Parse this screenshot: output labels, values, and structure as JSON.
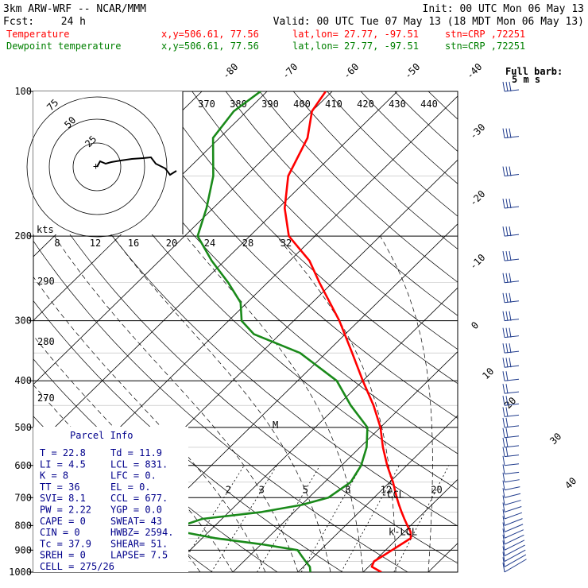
{
  "header": {
    "model": "3km ARW-WRF -- NCAR/MMM",
    "init": "Init: 00 UTC Mon 06 May 13",
    "fcst_label": "Fcst:",
    "fcst_value": "24 h",
    "valid": "Valid: 00 UTC Tue 07 May 13 (18 MDT Mon 06 May 13)"
  },
  "legend": [
    {
      "name": "Temperature",
      "xy": "x,y=506.61, 77.56",
      "latlon": "lat,lon= 27.77, -97.51",
      "stn": "stn=CRP ,72251",
      "color": "#ff0000"
    },
    {
      "name": "Dewpoint temperature",
      "xy": "x,y=506.61, 77.56",
      "latlon": "lat,lon= 27.77, -97.51",
      "stn": "stn=CRP ,72251",
      "color": "#008000"
    }
  ],
  "colors": {
    "temperature": "#ff0000",
    "dewpoint": "#1a8a1a",
    "barbs": "#1f3b8c",
    "info": "#00008b",
    "grid": "#000000"
  },
  "chart_data": {
    "type": "line",
    "title": "",
    "y_axis": {
      "label": "",
      "scale": "log",
      "ticks": [
        100,
        200,
        300,
        400,
        500,
        600,
        700,
        800,
        900,
        1000
      ],
      "range": [
        1000,
        100
      ]
    },
    "isotherm_labels": [
      "-80",
      "-70",
      "-60",
      "-50",
      "-40",
      "-30",
      "-20",
      "-10",
      "0",
      "10",
      "20",
      "30",
      "40"
    ],
    "theta_labels_top": [
      "370",
      "380",
      "390",
      "400",
      "410",
      "420",
      "430",
      "440"
    ],
    "theta_labels_left": [
      "290",
      "280",
      "270"
    ],
    "mixing_ratio_labels": [
      "2",
      "3",
      "5",
      "8",
      "12",
      "20"
    ],
    "hodograph": {
      "units": "kts",
      "ring_labels": [
        "25",
        "50",
        "75"
      ],
      "scale_labels": [
        "8",
        "12",
        "16",
        "20",
        "24",
        "28",
        "32"
      ]
    },
    "barb_legend": [
      "Full barb:",
      "5 m s"
    ],
    "level_labels": [
      {
        "text": "CCL",
        "p": 690,
        "color": "#00008b"
      },
      {
        "text": "LCL",
        "p": 825,
        "color": "#00008b"
      },
      {
        "text": "M",
        "p": 495,
        "color": "#00008b"
      }
    ],
    "series": [
      {
        "name": "Temperature",
        "color": "#ff0000",
        "points": [
          [
            1000,
            22.8
          ],
          [
            975,
            20.5
          ],
          [
            950,
            20.0
          ],
          [
            925,
            20.5
          ],
          [
            900,
            21.0
          ],
          [
            875,
            21.5
          ],
          [
            850,
            22.0
          ],
          [
            825,
            21.0
          ],
          [
            800,
            19.5
          ],
          [
            775,
            18.0
          ],
          [
            750,
            16.5
          ],
          [
            725,
            15.0
          ],
          [
            700,
            13.5
          ],
          [
            650,
            10.5
          ],
          [
            600,
            7.0
          ],
          [
            550,
            3.5
          ],
          [
            500,
            0.0
          ],
          [
            450,
            -4.5
          ],
          [
            400,
            -10.0
          ],
          [
            350,
            -16.0
          ],
          [
            300,
            -23.0
          ],
          [
            250,
            -32.0
          ],
          [
            225,
            -37.0
          ],
          [
            200,
            -44.0
          ],
          [
            175,
            -49.0
          ],
          [
            150,
            -53.5
          ],
          [
            125,
            -56.5
          ],
          [
            110,
            -60.0
          ],
          [
            100,
            -61.0
          ]
        ]
      },
      {
        "name": "Dewpoint temperature",
        "color": "#1a8a1a",
        "points": [
          [
            1000,
            11.9
          ],
          [
            975,
            11.0
          ],
          [
            950,
            9.5
          ],
          [
            925,
            8.0
          ],
          [
            900,
            6.5
          ],
          [
            875,
            0.0
          ],
          [
            850,
            -8.0
          ],
          [
            825,
            -14.0
          ],
          [
            800,
            -15.0
          ],
          [
            775,
            -13.0
          ],
          [
            750,
            -5.0
          ],
          [
            725,
            0.0
          ],
          [
            700,
            3.0
          ],
          [
            650,
            4.0
          ],
          [
            600,
            3.0
          ],
          [
            550,
            1.0
          ],
          [
            500,
            -2.0
          ],
          [
            450,
            -8.0
          ],
          [
            400,
            -14.0
          ],
          [
            350,
            -24.0
          ],
          [
            320,
            -34.0
          ],
          [
            300,
            -38.0
          ],
          [
            275,
            -41.0
          ],
          [
            250,
            -46.0
          ],
          [
            225,
            -52.0
          ],
          [
            200,
            -58.0
          ],
          [
            175,
            -61.0
          ],
          [
            150,
            -65.0
          ],
          [
            125,
            -71.0
          ],
          [
            110,
            -72.0
          ],
          [
            100,
            -71.0
          ]
        ]
      }
    ]
  },
  "parcel_info": {
    "title": "Parcel Info",
    "left": [
      "T  =    22.8",
      "LI =     4.5",
      "K  =       8",
      "TT =      36",
      "SVI=     8.1",
      "PW =    2.22",
      "CAPE =      0",
      "CIN  =      0",
      "Tc   =   37.9",
      "SREH =      0",
      "CELL = 275/26"
    ],
    "right": [
      "Td =  11.9",
      "LCL =  831.",
      "LFC =    0.",
      "EL  =    0.",
      "CCL =  677.",
      "YGP =   0.0",
      "SWEAT=   43",
      "HWBZ= 2594.",
      "SHEAR=  51.",
      "LAPSE=  7.5",
      ""
    ]
  }
}
